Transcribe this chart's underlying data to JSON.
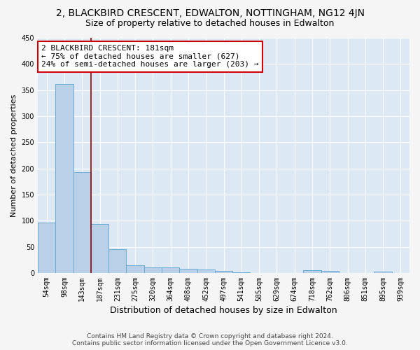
{
  "title": "2, BLACKBIRD CRESCENT, EDWALTON, NOTTINGHAM, NG12 4JN",
  "subtitle": "Size of property relative to detached houses in Edwalton",
  "xlabel": "Distribution of detached houses by size in Edwalton",
  "ylabel": "Number of detached properties",
  "footer_line1": "Contains HM Land Registry data © Crown copyright and database right 2024.",
  "footer_line2": "Contains public sector information licensed under the Open Government Licence v3.0.",
  "bar_labels": [
    "54sqm",
    "98sqm",
    "143sqm",
    "187sqm",
    "231sqm",
    "275sqm",
    "320sqm",
    "364sqm",
    "408sqm",
    "452sqm",
    "497sqm",
    "541sqm",
    "585sqm",
    "629sqm",
    "674sqm",
    "718sqm",
    "762sqm",
    "806sqm",
    "851sqm",
    "895sqm",
    "939sqm"
  ],
  "bar_values": [
    97,
    362,
    193,
    94,
    45,
    14,
    11,
    10,
    8,
    6,
    4,
    1,
    0,
    0,
    0,
    5,
    4,
    0,
    0,
    3,
    0
  ],
  "bar_color": "#b8d0e8",
  "bar_edge_color": "#6aaad4",
  "annotation_text": "2 BLACKBIRD CRESCENT: 181sqm\n← 75% of detached houses are smaller (627)\n24% of semi-detached houses are larger (203) →",
  "marker_bar_index": 3,
  "marker_color": "#990000",
  "annotation_box_color": "#ffffff",
  "annotation_box_edge": "#cc0000",
  "ylim": [
    0,
    450
  ],
  "yticks": [
    0,
    50,
    100,
    150,
    200,
    250,
    300,
    350,
    400,
    450
  ],
  "background_color": "#dce9f5",
  "grid_color": "#ffffff",
  "fig_background": "#f5f5f5",
  "title_fontsize": 10,
  "subtitle_fontsize": 9,
  "ylabel_fontsize": 8,
  "xlabel_fontsize": 9,
  "tick_fontsize": 7,
  "footer_fontsize": 6.5,
  "annotation_fontsize": 8
}
